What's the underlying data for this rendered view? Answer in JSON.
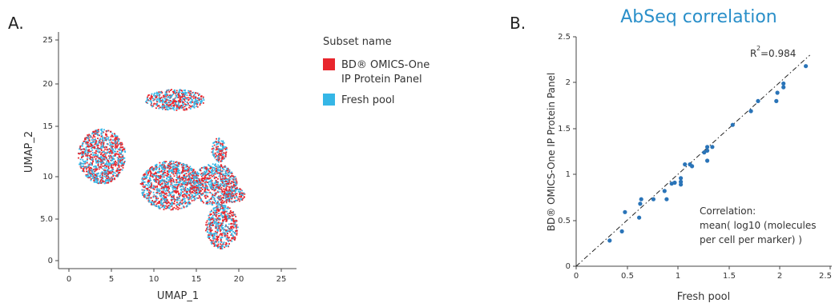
{
  "panel_a": {
    "letter": "A.",
    "legend": {
      "title": "Subset name",
      "items": [
        {
          "label_line1": "BD® OMICS-One",
          "label_line2": "IP Protein Panel",
          "color": "#e8262d"
        },
        {
          "label_line1": "Fresh pool",
          "label_line2": "",
          "color": "#35b6e6"
        }
      ]
    }
  },
  "panel_b": {
    "letter": "B.",
    "r2_label": "R",
    "r2_sup": "2",
    "r2_value": "=0.984",
    "annotation_lines": [
      "Correlation:",
      "mean( log10 (molecules",
      "per cell per marker) )"
    ]
  },
  "colors": {
    "red": "#e8262d",
    "blue": "#35b6e6",
    "dot": "#2a74b8",
    "title": "#2a8fc9",
    "axis": "#444444"
  },
  "chart_data": [
    {
      "type": "scatter",
      "title": "",
      "xlabel": "UMAP_1",
      "ylabel": "UMAP_2",
      "xlim": [
        -0.5,
        26
      ],
      "ylim": [
        -0.5,
        26
      ],
      "xticks": [
        "0",
        "5",
        "10",
        "15",
        "20",
        "25"
      ],
      "yticks": [
        "0",
        "5.0",
        "10",
        "15",
        "20",
        "25"
      ],
      "grid": false,
      "legend_position": "right",
      "series": [
        {
          "name": "BD® OMICS-One IP Protein Panel",
          "color": "#e8262d"
        },
        {
          "name": "Fresh pool",
          "color": "#35b6e6"
        }
      ],
      "clusters": [
        {
          "cx": 3.9,
          "cy": 11.8,
          "rx": 2.8,
          "ry": 3.1
        },
        {
          "cx": 12.5,
          "cy": 18.2,
          "rx": 3.5,
          "ry": 1.2
        },
        {
          "cx": 12.0,
          "cy": 8.5,
          "rx": 3.6,
          "ry": 2.8
        },
        {
          "cx": 17.2,
          "cy": 8.6,
          "rx": 2.6,
          "ry": 2.4
        },
        {
          "cx": 18.0,
          "cy": 3.8,
          "rx": 1.9,
          "ry": 2.5
        },
        {
          "cx": 17.7,
          "cy": 12.5,
          "rx": 0.9,
          "ry": 1.4
        },
        {
          "cx": 19.5,
          "cy": 7.4,
          "rx": 1.2,
          "ry": 0.9
        }
      ]
    },
    {
      "type": "scatter",
      "title": "AbSeq correlation",
      "xlabel": "Fresh pool",
      "ylabel": "BD® OMICS-One IP Protein Panel",
      "xlim": [
        0,
        2.5
      ],
      "ylim": [
        0,
        2.5
      ],
      "xticks": [
        "0",
        "0.5",
        "1",
        "1.5",
        "2",
        "2.5"
      ],
      "yticks": [
        "0",
        "0.5",
        "1",
        "1.5",
        "2",
        "2.5"
      ],
      "grid": false,
      "fit_line": {
        "x": [
          0,
          2.3
        ],
        "y": [
          0,
          2.3
        ],
        "style": "dash-dot"
      },
      "annotation": "R2=0.984",
      "points": [
        {
          "x": 0.33,
          "y": 0.28
        },
        {
          "x": 0.45,
          "y": 0.38
        },
        {
          "x": 0.48,
          "y": 0.59
        },
        {
          "x": 0.62,
          "y": 0.53
        },
        {
          "x": 0.63,
          "y": 0.68
        },
        {
          "x": 0.64,
          "y": 0.73
        },
        {
          "x": 0.76,
          "y": 0.73
        },
        {
          "x": 0.87,
          "y": 0.82
        },
        {
          "x": 0.89,
          "y": 0.73
        },
        {
          "x": 0.94,
          "y": 0.9
        },
        {
          "x": 0.97,
          "y": 0.91
        },
        {
          "x": 1.03,
          "y": 0.92
        },
        {
          "x": 1.03,
          "y": 0.96
        },
        {
          "x": 1.03,
          "y": 0.89
        },
        {
          "x": 1.07,
          "y": 1.11
        },
        {
          "x": 1.12,
          "y": 1.11
        },
        {
          "x": 1.14,
          "y": 1.09
        },
        {
          "x": 1.26,
          "y": 1.24
        },
        {
          "x": 1.29,
          "y": 1.26
        },
        {
          "x": 1.29,
          "y": 1.3
        },
        {
          "x": 1.29,
          "y": 1.15
        },
        {
          "x": 1.34,
          "y": 1.3
        },
        {
          "x": 1.54,
          "y": 1.54
        },
        {
          "x": 1.72,
          "y": 1.69
        },
        {
          "x": 1.79,
          "y": 1.8
        },
        {
          "x": 1.97,
          "y": 1.8
        },
        {
          "x": 1.98,
          "y": 1.89
        },
        {
          "x": 2.04,
          "y": 1.95
        },
        {
          "x": 2.04,
          "y": 1.99
        },
        {
          "x": 2.26,
          "y": 2.18
        }
      ]
    }
  ]
}
